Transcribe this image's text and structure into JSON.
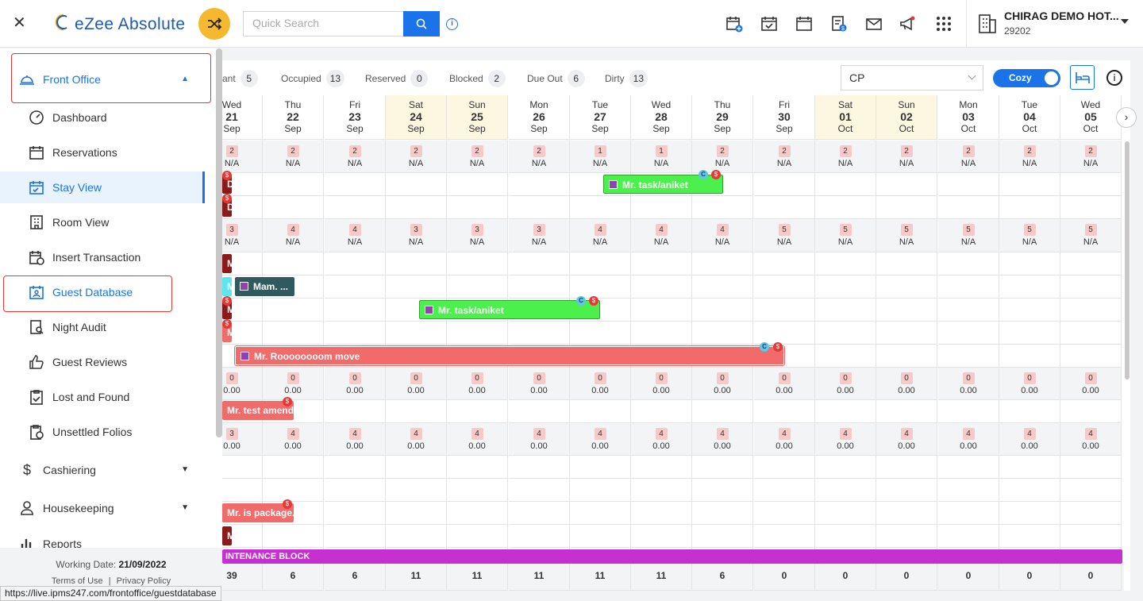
{
  "header": {
    "logo_text": "eZee Absolute",
    "search_placeholder": "Quick Search",
    "hotel_name": "CHIRAG DEMO HOT...",
    "hotel_id": "29202"
  },
  "sidebar": {
    "section_front_office": "Front Office",
    "items": [
      {
        "label": "Dashboard",
        "icon": "gauge-icon"
      },
      {
        "label": "Reservations",
        "icon": "calendar-icon"
      },
      {
        "label": "Stay View",
        "icon": "calendar-check-icon"
      },
      {
        "label": "Room View",
        "icon": "building-icon"
      },
      {
        "label": "Insert Transaction",
        "icon": "calendar-clock-icon"
      },
      {
        "label": "Guest Database",
        "icon": "contact-card-icon"
      },
      {
        "label": "Night Audit",
        "icon": "audit-icon"
      },
      {
        "label": "Guest Reviews",
        "icon": "thumbs-up-icon"
      },
      {
        "label": "Lost and Found",
        "icon": "clipboard-check-icon"
      },
      {
        "label": "Unsettled Folios",
        "icon": "clipboard-clock-icon"
      }
    ],
    "cashiering": "Cashiering",
    "housekeeping": "Housekeeping",
    "reports": "Reports",
    "working_date_label": "Working Date:",
    "working_date": "21/09/2022",
    "terms": "Terms of Use",
    "privacy": "Privacy Policy"
  },
  "status_url": "https://live.ipms247.com/frontoffice/guestdatabase",
  "stats": [
    {
      "label": "ant",
      "value": "5"
    },
    {
      "label": "Occupied",
      "value": "13"
    },
    {
      "label": "Reserved",
      "value": "0"
    },
    {
      "label": "Blocked",
      "value": "2"
    },
    {
      "label": "Due Out",
      "value": "6"
    },
    {
      "label": "Dirty",
      "value": "13"
    }
  ],
  "rate_plan": "CP",
  "view_mode": "Cozy",
  "days": [
    {
      "dow": "Wed",
      "day": "21",
      "mon": "Sep",
      "weekend": false
    },
    {
      "dow": "Thu",
      "day": "22",
      "mon": "Sep",
      "weekend": false
    },
    {
      "dow": "Fri",
      "day": "23",
      "mon": "Sep",
      "weekend": false
    },
    {
      "dow": "Sat",
      "day": "24",
      "mon": "Sep",
      "weekend": true
    },
    {
      "dow": "Sun",
      "day": "25",
      "mon": "Sep",
      "weekend": true
    },
    {
      "dow": "Mon",
      "day": "26",
      "mon": "Sep",
      "weekend": false
    },
    {
      "dow": "Tue",
      "day": "27",
      "mon": "Sep",
      "weekend": false
    },
    {
      "dow": "Wed",
      "day": "28",
      "mon": "Sep",
      "weekend": false
    },
    {
      "dow": "Thu",
      "day": "29",
      "mon": "Sep",
      "weekend": false
    },
    {
      "dow": "Fri",
      "day": "30",
      "mon": "Sep",
      "weekend": false
    },
    {
      "dow": "Sat",
      "day": "01",
      "mon": "Oct",
      "weekend": true
    },
    {
      "dow": "Sun",
      "day": "02",
      "mon": "Oct",
      "weekend": true
    },
    {
      "dow": "Mon",
      "day": "03",
      "mon": "Oct",
      "weekend": false
    },
    {
      "dow": "Tue",
      "day": "04",
      "mon": "Oct",
      "weekend": false
    },
    {
      "dow": "Wed",
      "day": "05",
      "mon": "Oct",
      "weekend": false
    }
  ],
  "availability_rows": [
    {
      "counts": [
        "2",
        "2",
        "2",
        "2",
        "2",
        "2",
        "1",
        "1",
        "2",
        "2",
        "2",
        "2",
        "2",
        "2",
        "2"
      ],
      "rate": "N/A"
    },
    {
      "counts": [
        "3",
        "4",
        "4",
        "3",
        "3",
        "3",
        "4",
        "4",
        "4",
        "5",
        "5",
        "5",
        "5",
        "5",
        "5"
      ],
      "rate": "N/A"
    },
    {
      "counts": [
        "0",
        "0",
        "0",
        "0",
        "0",
        "0",
        "0",
        "0",
        "0",
        "0",
        "0",
        "0",
        "0",
        "0",
        "0"
      ],
      "rate": "0.00"
    },
    {
      "counts": [
        "3",
        "4",
        "4",
        "4",
        "4",
        "4",
        "4",
        "4",
        "4",
        "4",
        "4",
        "4",
        "4",
        "4",
        "4"
      ],
      "rate": "0.00"
    }
  ],
  "bookings": {
    "b1": "Mr. task/aniket",
    "b2": "Mam. ...",
    "b3": "Mr. task/aniket",
    "b4": "Mr. Roooooooom move",
    "b5": "Mr. test amend",
    "b6": "Mr. is package...",
    "b7": "INTENANCE BLOCK",
    "stub_d": "D",
    "stub_m": "M"
  },
  "totals": [
    "39",
    "6",
    "6",
    "11",
    "11",
    "11",
    "11",
    "11",
    "6",
    "0",
    "0",
    "0",
    "0",
    "0",
    "0"
  ],
  "colors": {
    "accent": "#1a73e8",
    "green": "#4cf04c",
    "salmon": "#f26b6b",
    "maroon": "#8b1a1a",
    "magenta": "#c62fd0",
    "slate": "#2f5b60"
  }
}
